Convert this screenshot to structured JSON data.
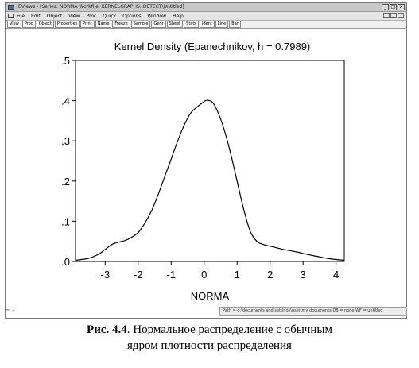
{
  "window": {
    "title": "EViews - [Series: NORMA   Workfile: KERNELGRAPHS::DETECT\\Untitled]",
    "controls": [
      "_",
      "□",
      "x"
    ]
  },
  "menubar": {
    "items": [
      "File",
      "Edit",
      "Object",
      "View",
      "Proc",
      "Quick",
      "Options",
      "Window",
      "Help"
    ]
  },
  "toolbar": {
    "buttons": [
      "View",
      "Proc",
      "Object",
      "Properties",
      "Print",
      "Name",
      "Freeze",
      "Sample",
      "Genr",
      "Sheet",
      "Stats",
      "Ident",
      "Line",
      "Bar"
    ]
  },
  "status_bar": {
    "text": "Path = d:\\documents and settings\\user\\my documents     DB = none   WF = untitled"
  },
  "chart_data": {
    "type": "line",
    "title": "Kernel Density (Epanechnikov, h =  0.7989)",
    "xlabel": "NORMA",
    "ylabel": "",
    "xlim": [
      -3.9,
      4.25
    ],
    "ylim": [
      0,
      0.5
    ],
    "xticks": [
      -3,
      -2,
      -1,
      0,
      1,
      2,
      3,
      4
    ],
    "xtick_labels": [
      "-3",
      "-2",
      "-1",
      "0",
      "1",
      "2",
      "3",
      "4"
    ],
    "yticks": [
      0,
      0.1,
      0.2,
      0.3,
      0.4,
      0.5
    ],
    "ytick_labels": [
      ".0",
      ".1",
      ".2",
      ".3",
      ".4",
      ".5"
    ],
    "grid": false,
    "series": [
      {
        "x": [
          -3.9,
          -3.5,
          -3.2,
          -3.0,
          -2.8,
          -2.6,
          -2.4,
          -2.2,
          -2.0,
          -1.8,
          -1.6,
          -1.4,
          -1.2,
          -1.0,
          -0.8,
          -0.6,
          -0.4,
          -0.2,
          0.0,
          0.1,
          0.25,
          0.4,
          0.6,
          0.8,
          1.0,
          1.2,
          1.4,
          1.6,
          1.8,
          2.0,
          2.2,
          2.4,
          2.6,
          2.8,
          3.0,
          3.4,
          3.8,
          4.25
        ],
        "y": [
          0.003,
          0.008,
          0.018,
          0.03,
          0.042,
          0.048,
          0.052,
          0.06,
          0.072,
          0.095,
          0.125,
          0.165,
          0.21,
          0.255,
          0.3,
          0.34,
          0.37,
          0.385,
          0.398,
          0.401,
          0.396,
          0.375,
          0.33,
          0.27,
          0.2,
          0.13,
          0.075,
          0.05,
          0.042,
          0.038,
          0.034,
          0.03,
          0.027,
          0.024,
          0.02,
          0.013,
          0.007,
          0.003
        ]
      }
    ]
  },
  "caption": {
    "fig_label": "Рис. 4.4",
    "line1": ". Нормальное распределение с обычным",
    "line2": "ядром плотности распределения"
  }
}
